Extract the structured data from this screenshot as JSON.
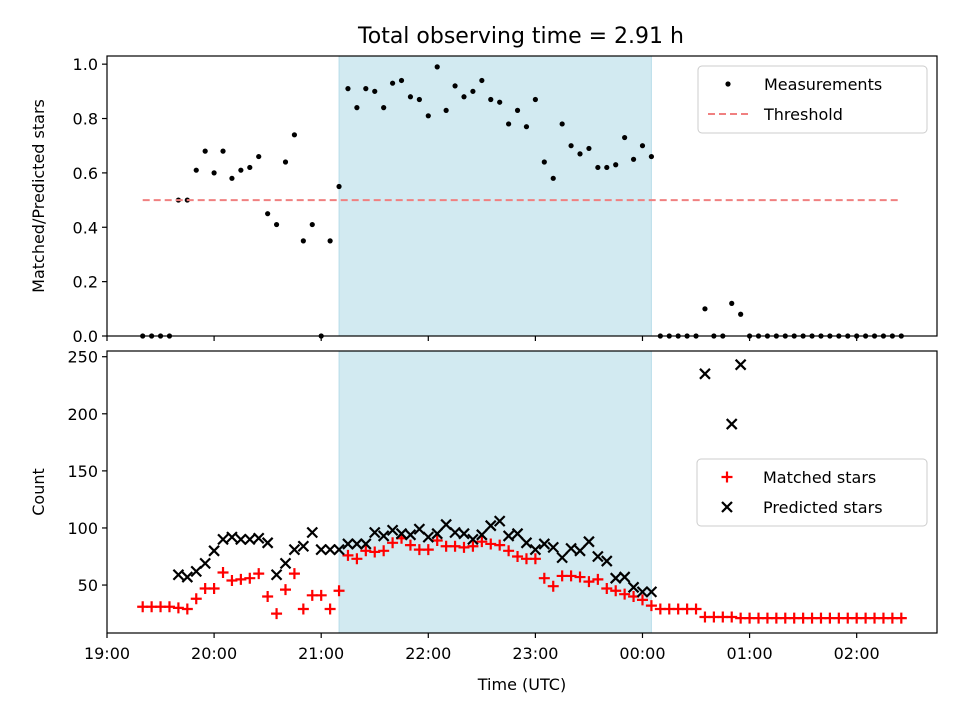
{
  "figure": {
    "title": "Total observing time = 2.91 h"
  },
  "chart_data": [
    {
      "type": "scatter",
      "panel": "top",
      "ylabel": "Matched/Predicted stars",
      "xlim": [
        "19:00",
        "02:45"
      ],
      "ylim": [
        0,
        1.03
      ],
      "xticks": [
        "19:00",
        "20:00",
        "21:00",
        "22:00",
        "23:00",
        "00:00",
        "01:00",
        "02:00"
      ],
      "yticks": [
        0.0,
        0.2,
        0.4,
        0.6,
        0.8,
        1.0
      ],
      "ytick_labels": [
        "0.0",
        "0.2",
        "0.4",
        "0.6",
        "0.8",
        "1.0"
      ],
      "legend": {
        "position": "top-right",
        "entries": [
          "Measurements",
          "Threshold"
        ]
      },
      "shaded_interval": {
        "start": "21:10",
        "end": "00:05",
        "color": "#add8e6"
      },
      "series": [
        {
          "name": "Measurements",
          "style": "dot",
          "color": "#000000",
          "x": [
            "19:20",
            "19:25",
            "19:30",
            "19:35",
            "19:40",
            "19:45",
            "19:50",
            "19:55",
            "20:00",
            "20:05",
            "20:10",
            "20:15",
            "20:20",
            "20:25",
            "20:30",
            "20:35",
            "20:40",
            "20:45",
            "20:50",
            "20:55",
            "21:00",
            "21:05",
            "21:10",
            "21:15",
            "21:20",
            "21:25",
            "21:30",
            "21:35",
            "21:40",
            "21:45",
            "21:50",
            "21:55",
            "22:00",
            "22:05",
            "22:10",
            "22:15",
            "22:20",
            "22:25",
            "22:30",
            "22:35",
            "22:40",
            "22:45",
            "22:50",
            "22:55",
            "23:00",
            "23:05",
            "23:10",
            "23:15",
            "23:20",
            "23:25",
            "23:30",
            "23:35",
            "23:40",
            "23:45",
            "23:50",
            "23:55",
            "00:00",
            "00:05",
            "00:10",
            "00:15",
            "00:20",
            "00:25",
            "00:30",
            "00:35",
            "00:40",
            "00:45",
            "00:50",
            "00:55",
            "01:00",
            "01:05",
            "01:10",
            "01:15",
            "01:20",
            "01:25",
            "01:30",
            "01:35",
            "01:40",
            "01:45",
            "01:50",
            "01:55",
            "02:00",
            "02:05",
            "02:10",
            "02:15",
            "02:20",
            "02:25"
          ],
          "y": [
            0,
            0,
            0,
            0,
            0.5,
            0.5,
            0.61,
            0.68,
            0.6,
            0.68,
            0.58,
            0.61,
            0.62,
            0.66,
            0.45,
            0.41,
            0.64,
            0.74,
            0.35,
            0.41,
            0,
            0.35,
            0.55,
            0.91,
            0.84,
            0.91,
            0.9,
            0.84,
            0.93,
            0.94,
            0.88,
            0.87,
            0.81,
            0.99,
            0.83,
            0.92,
            0.88,
            0.9,
            0.94,
            0.87,
            0.86,
            0.78,
            0.83,
            0.77,
            0.87,
            0.64,
            0.58,
            0.78,
            0.7,
            0.67,
            0.69,
            0.62,
            0.62,
            0.63,
            0.73,
            0.65,
            0.7,
            0.66,
            0,
            0,
            0,
            0,
            0,
            0.1,
            0,
            0,
            0.12,
            0.08,
            0,
            0,
            0,
            0,
            0,
            0,
            0,
            0,
            0,
            0,
            0,
            0,
            0,
            0,
            0,
            0,
            0,
            0
          ]
        },
        {
          "name": "Threshold",
          "style": "dashed-line",
          "color": "#f08080",
          "x": [
            "19:20",
            "02:25"
          ],
          "y": [
            0.5,
            0.5
          ]
        }
      ]
    },
    {
      "type": "scatter",
      "panel": "bottom",
      "xlabel": "Time (UTC)",
      "ylabel": "Count",
      "xlim": [
        "19:00",
        "02:45"
      ],
      "ylim": [
        8,
        255
      ],
      "xticks": [
        "19:00",
        "20:00",
        "21:00",
        "22:00",
        "23:00",
        "00:00",
        "01:00",
        "02:00"
      ],
      "yticks": [
        50,
        100,
        150,
        200,
        250
      ],
      "legend": {
        "position": "center-right",
        "entries": [
          "Matched stars",
          "Predicted stars"
        ]
      },
      "shaded_interval": {
        "start": "21:10",
        "end": "00:05",
        "color": "#add8e6"
      },
      "series": [
        {
          "name": "Matched stars",
          "marker": "+",
          "color": "#ff0000",
          "x": [
            "19:20",
            "19:25",
            "19:30",
            "19:35",
            "19:40",
            "19:45",
            "19:50",
            "19:55",
            "20:00",
            "20:05",
            "20:10",
            "20:15",
            "20:20",
            "20:25",
            "20:30",
            "20:35",
            "20:40",
            "20:45",
            "20:50",
            "20:55",
            "21:00",
            "21:05",
            "21:10",
            "21:15",
            "21:20",
            "21:25",
            "21:30",
            "21:35",
            "21:40",
            "21:45",
            "21:50",
            "21:55",
            "22:00",
            "22:05",
            "22:10",
            "22:15",
            "22:20",
            "22:25",
            "22:30",
            "22:35",
            "22:40",
            "22:45",
            "22:50",
            "22:55",
            "23:00",
            "23:05",
            "23:10",
            "23:15",
            "23:20",
            "23:25",
            "23:30",
            "23:35",
            "23:40",
            "23:45",
            "23:50",
            "23:55",
            "00:00",
            "00:05",
            "00:10",
            "00:15",
            "00:20",
            "00:25",
            "00:30",
            "00:35",
            "00:40",
            "00:45",
            "00:50",
            "00:55",
            "01:00",
            "01:05",
            "01:10",
            "01:15",
            "01:20",
            "01:25",
            "01:30",
            "01:35",
            "01:40",
            "01:45",
            "01:50",
            "01:55",
            "02:00",
            "02:05",
            "02:10",
            "02:15",
            "02:20",
            "02:25"
          ],
          "y": [
            31,
            31,
            31,
            31,
            30,
            29,
            38,
            47,
            47,
            61,
            54,
            55,
            56,
            60,
            40,
            25,
            46,
            60,
            29,
            41,
            41,
            29,
            45,
            76,
            73,
            80,
            79,
            80,
            87,
            91,
            85,
            81,
            81,
            89,
            84,
            84,
            83,
            84,
            88,
            86,
            85,
            80,
            75,
            73,
            73,
            56,
            49,
            58,
            58,
            57,
            53,
            55,
            47,
            45,
            42,
            40,
            37,
            32,
            29,
            29,
            29,
            29,
            29,
            22,
            22,
            22,
            22,
            21,
            21,
            21,
            21,
            21,
            21,
            21,
            21,
            21,
            21,
            21,
            21,
            21,
            21,
            21,
            21,
            21,
            21,
            21
          ]
        },
        {
          "name": "Predicted stars",
          "marker": "x",
          "color": "#000000",
          "x": [
            "19:40",
            "19:45",
            "19:50",
            "19:55",
            "20:00",
            "20:05",
            "20:10",
            "20:15",
            "20:20",
            "20:25",
            "20:30",
            "20:35",
            "20:40",
            "20:45",
            "20:50",
            "20:55",
            "21:00",
            "21:05",
            "21:10",
            "21:15",
            "21:20",
            "21:25",
            "21:30",
            "21:35",
            "21:40",
            "21:45",
            "21:50",
            "21:55",
            "22:00",
            "22:05",
            "22:10",
            "22:15",
            "22:20",
            "22:25",
            "22:30",
            "22:35",
            "22:40",
            "22:45",
            "22:50",
            "22:55",
            "23:00",
            "23:05",
            "23:10",
            "23:15",
            "23:20",
            "23:25",
            "23:30",
            "23:35",
            "23:40",
            "23:45",
            "23:50",
            "23:55",
            "00:00",
            "00:05",
            "00:35",
            "00:50",
            "00:55"
          ],
          "y": [
            59,
            57,
            62,
            69,
            80,
            90,
            92,
            90,
            90,
            91,
            87,
            59,
            69,
            81,
            84,
            96,
            81,
            81,
            81,
            86,
            86,
            86,
            96,
            93,
            98,
            95,
            94,
            99,
            92,
            95,
            103,
            96,
            95,
            90,
            94,
            102,
            106,
            93,
            95,
            87,
            81,
            86,
            83,
            74,
            82,
            80,
            88,
            75,
            71,
            56,
            57,
            48,
            44,
            44,
            235,
            191,
            243
          ]
        }
      ]
    }
  ]
}
